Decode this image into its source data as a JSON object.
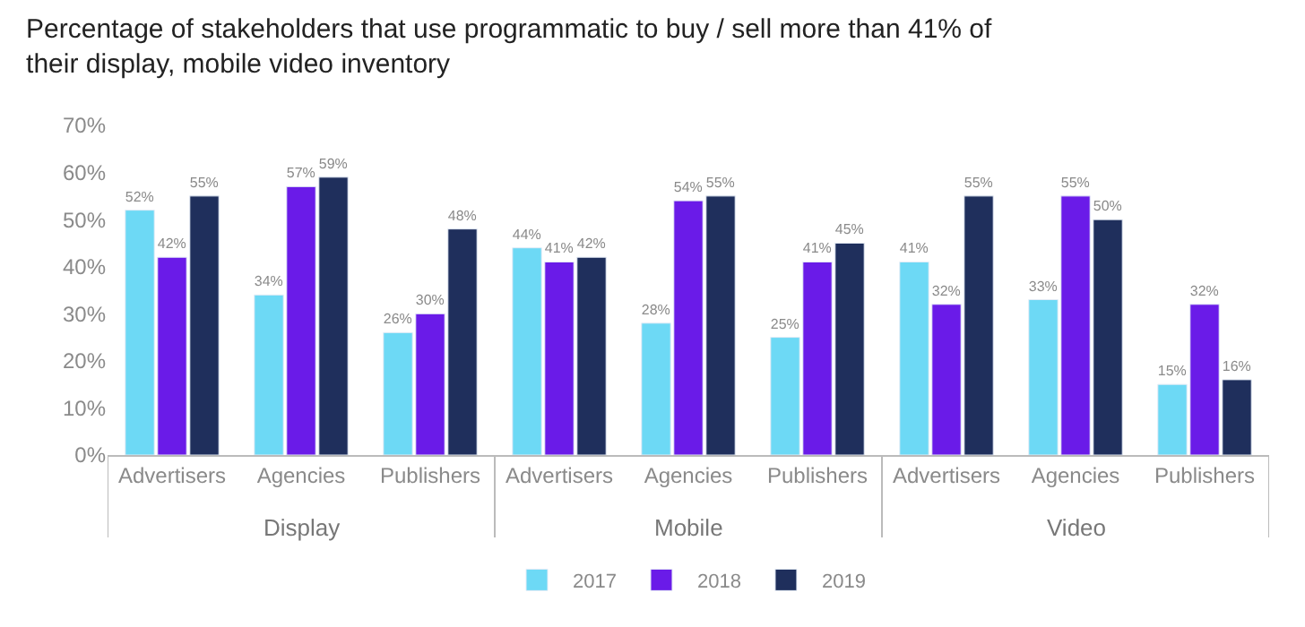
{
  "chart_data": {
    "type": "bar",
    "title": "Percentage of stakeholders that use programmatic to buy / sell more than 41% of their display, mobile video inventory",
    "categories": [
      "Advertisers",
      "Agencies",
      "Publishers",
      "Advertisers",
      "Agencies",
      "Publishers",
      "Advertisers",
      "Agencies",
      "Publishers"
    ],
    "series": [
      {
        "name": "2017",
        "color": "#6dd9f5",
        "values": [
          52,
          34,
          26,
          44,
          28,
          25,
          41,
          33,
          15
        ],
        "value_labels": [
          "52%",
          "34%",
          "26%",
          "44%",
          "28%",
          "25%",
          "41%",
          "33%",
          "15%"
        ]
      },
      {
        "name": "2018",
        "color": "#6a1be8",
        "values": [
          42,
          57,
          30,
          41,
          54,
          41,
          32,
          55,
          32
        ],
        "value_labels": [
          "42%",
          "57%",
          "30%",
          "41%",
          "54%",
          "41%",
          "32%",
          "55%",
          "32%"
        ]
      },
      {
        "name": "2019",
        "color": "#1f2f5c",
        "values": [
          55,
          59,
          48,
          42,
          55,
          45,
          55,
          50,
          16
        ],
        "value_labels": [
          "55%",
          "59%",
          "48%",
          "42%",
          "55%",
          "45%",
          "55%",
          "50%",
          "16%"
        ]
      }
    ],
    "annotations": [
      "Display",
      "Mobile",
      "Video"
    ],
    "ylim": [
      0,
      70
    ],
    "yticks": [
      {
        "value": 0,
        "label": "0%"
      },
      {
        "value": 10,
        "label": "10%"
      },
      {
        "value": 20,
        "label": "20%"
      },
      {
        "value": 30,
        "label": "30%"
      },
      {
        "value": 40,
        "label": "40%"
      },
      {
        "value": 50,
        "label": "50%"
      },
      {
        "value": 60,
        "label": "60%"
      },
      {
        "value": 70,
        "label": "70%"
      }
    ],
    "legend": "bottom"
  }
}
